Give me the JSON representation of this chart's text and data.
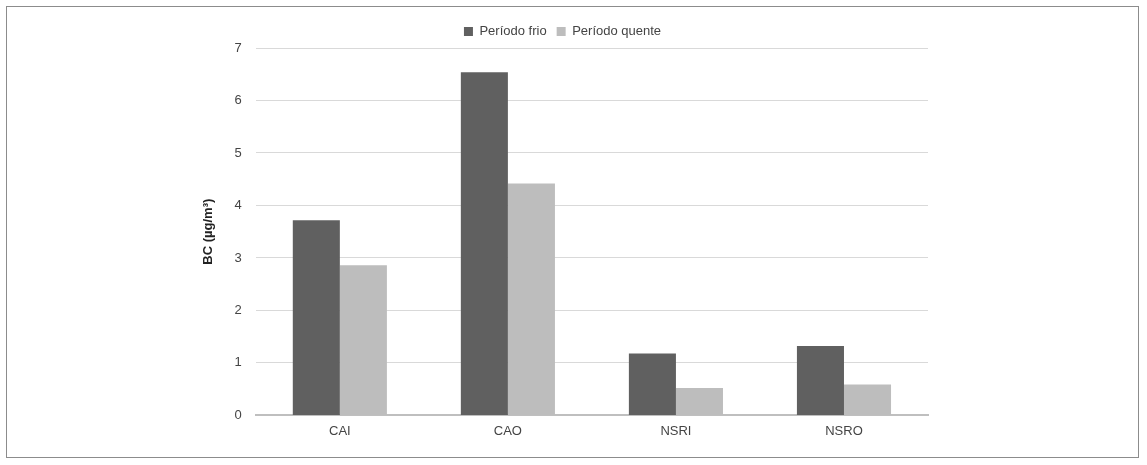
{
  "chart_data": {
    "type": "bar",
    "ylabel": "BC (µg/m³)",
    "categories": [
      "CAI",
      "CAO",
      "NSRI",
      "NSRO"
    ],
    "series": [
      {
        "name": "Período frio",
        "color": "#606060",
        "values": [
          3.72,
          6.54,
          1.18,
          1.32
        ]
      },
      {
        "name": "Período quente",
        "color": "#bdbdbd",
        "values": [
          2.86,
          4.42,
          0.52,
          0.59
        ]
      }
    ],
    "ylim": [
      0,
      7
    ],
    "yticks": [
      0,
      1,
      2,
      3,
      4,
      5,
      6,
      7
    ],
    "grid": "y",
    "legend": "top"
  }
}
